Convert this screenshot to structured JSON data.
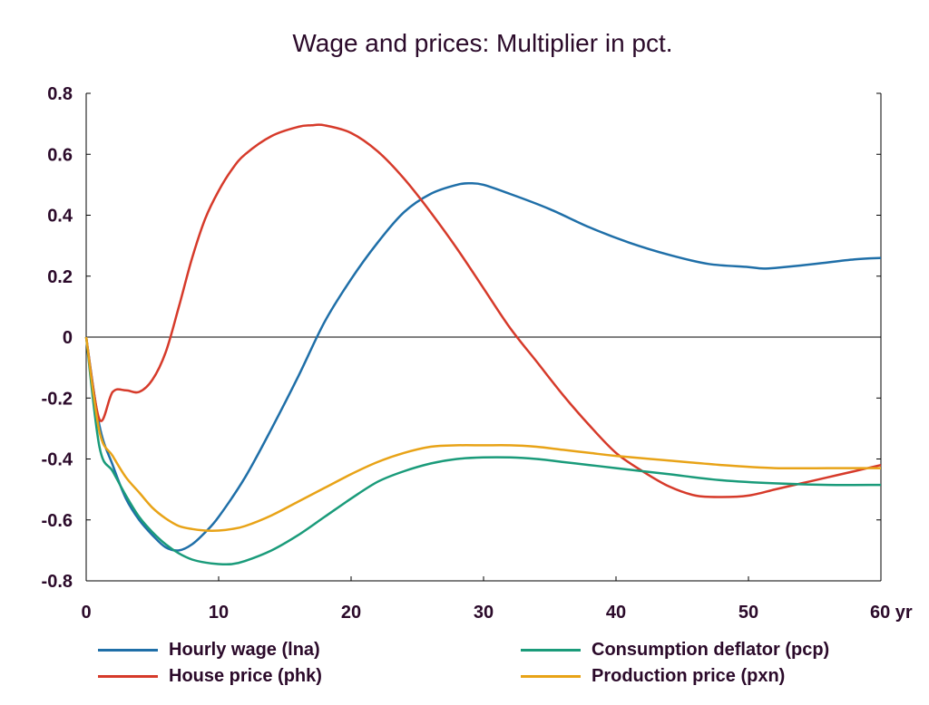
{
  "chart_data": {
    "type": "line",
    "title": "Wage and prices: Multiplier in pct.",
    "xlabel": "",
    "ylabel": "",
    "x_unit_label": "yr",
    "xlim": [
      0,
      60
    ],
    "ylim": [
      -0.8,
      0.8
    ],
    "x_ticks": [
      0,
      10,
      20,
      30,
      40,
      50,
      60
    ],
    "y_ticks": [
      0.8,
      0.6,
      0.4,
      0.2,
      0,
      -0.2,
      -0.4,
      -0.6,
      -0.8
    ],
    "x_tick_labels": [
      "0",
      "10",
      "20",
      "30",
      "40",
      "50",
      "60 yr"
    ],
    "y_tick_labels": [
      "0.8",
      "0.6",
      "0.4",
      "0.2",
      "0",
      "-0.2",
      "-0.4",
      "-0.6",
      "-0.8"
    ],
    "grid": false,
    "zero_line": true,
    "legend_position": "bottom",
    "series": [
      {
        "name": "Hourly wage (lna)",
        "color": "#1f6fa8",
        "x": [
          0,
          1,
          2,
          3,
          4,
          5,
          6,
          7,
          8,
          9,
          10,
          12,
          14,
          16,
          18,
          20,
          22,
          24,
          26,
          28,
          29,
          30,
          32,
          35,
          38,
          41,
          44,
          47,
          50,
          51,
          52,
          55,
          58,
          60
        ],
        "y": [
          0,
          -0.29,
          -0.42,
          -0.53,
          -0.6,
          -0.65,
          -0.69,
          -0.7,
          -0.68,
          -0.64,
          -0.59,
          -0.46,
          -0.3,
          -0.13,
          0.05,
          0.19,
          0.31,
          0.41,
          0.47,
          0.5,
          0.505,
          0.5,
          0.47,
          0.42,
          0.36,
          0.31,
          0.27,
          0.24,
          0.23,
          0.225,
          0.227,
          0.24,
          0.255,
          0.26
        ]
      },
      {
        "name": "House price (phk)",
        "color": "#d63a2a",
        "x": [
          0,
          1,
          2,
          3,
          4,
          5,
          6,
          7,
          8,
          9,
          10,
          11,
          12,
          14,
          16,
          17,
          18,
          20,
          22,
          24,
          26,
          28,
          30,
          32,
          34,
          36,
          38,
          40,
          42,
          44,
          46,
          48,
          50,
          52,
          54,
          56,
          58,
          60
        ],
        "y": [
          0,
          -0.27,
          -0.18,
          -0.175,
          -0.18,
          -0.14,
          -0.05,
          0.1,
          0.26,
          0.39,
          0.48,
          0.55,
          0.6,
          0.66,
          0.69,
          0.695,
          0.695,
          0.67,
          0.61,
          0.52,
          0.41,
          0.29,
          0.16,
          0.03,
          -0.08,
          -0.19,
          -0.29,
          -0.38,
          -0.44,
          -0.49,
          -0.52,
          -0.525,
          -0.52,
          -0.5,
          -0.48,
          -0.46,
          -0.44,
          -0.42
        ]
      },
      {
        "name": "Consumption deflator (pcp)",
        "color": "#1a9b7a",
        "x": [
          0,
          1,
          2,
          3,
          4,
          5,
          6,
          7,
          8,
          9,
          10,
          11,
          12,
          14,
          16,
          18,
          20,
          22,
          24,
          26,
          28,
          30,
          32,
          34,
          36,
          38,
          40,
          44,
          48,
          52,
          56,
          60
        ],
        "y": [
          0,
          -0.36,
          -0.44,
          -0.52,
          -0.59,
          -0.64,
          -0.68,
          -0.71,
          -0.73,
          -0.74,
          -0.745,
          -0.745,
          -0.735,
          -0.7,
          -0.65,
          -0.59,
          -0.53,
          -0.475,
          -0.44,
          -0.415,
          -0.4,
          -0.395,
          -0.395,
          -0.4,
          -0.41,
          -0.42,
          -0.43,
          -0.45,
          -0.47,
          -0.48,
          -0.485,
          -0.485
        ]
      },
      {
        "name": "Production price (pxn)",
        "color": "#e8a317",
        "x": [
          0,
          1,
          2,
          3,
          4,
          5,
          6,
          7,
          8,
          9,
          10,
          11,
          12,
          14,
          16,
          18,
          20,
          22,
          24,
          26,
          28,
          30,
          32,
          34,
          36,
          38,
          40,
          44,
          48,
          52,
          56,
          60
        ],
        "y": [
          0,
          -0.31,
          -0.39,
          -0.46,
          -0.51,
          -0.56,
          -0.595,
          -0.62,
          -0.63,
          -0.635,
          -0.635,
          -0.63,
          -0.62,
          -0.585,
          -0.54,
          -0.495,
          -0.45,
          -0.41,
          -0.38,
          -0.36,
          -0.355,
          -0.355,
          -0.355,
          -0.36,
          -0.37,
          -0.38,
          -0.39,
          -0.405,
          -0.42,
          -0.43,
          -0.43,
          -0.43
        ]
      }
    ]
  }
}
